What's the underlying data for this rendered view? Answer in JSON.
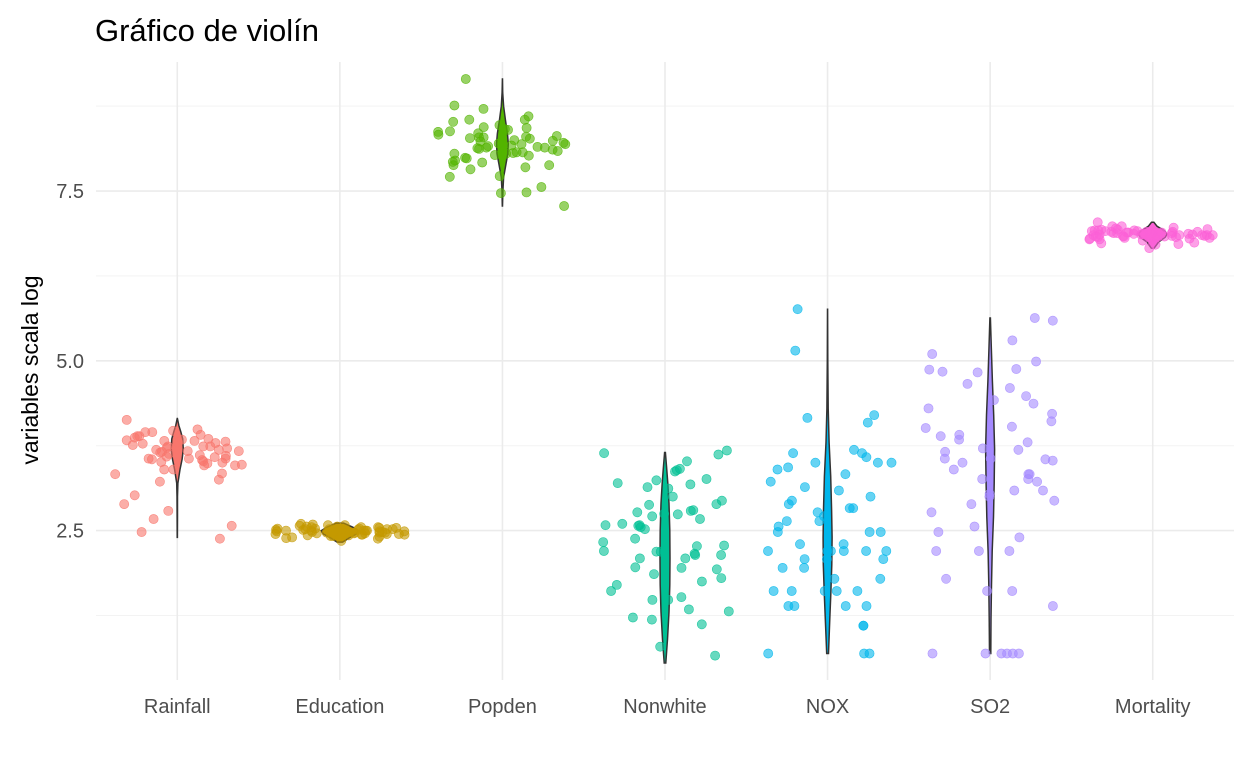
{
  "chart_data": {
    "type": "violin",
    "title": "Gráfico de violín",
    "xlabel": "",
    "ylabel": "variables scala log",
    "ylim": [
      0.3,
      9.4
    ],
    "yticks": [
      2.5,
      5.0,
      7.5
    ],
    "ytick_labels": [
      "2.5",
      "5.0",
      "7.5"
    ],
    "grid": true,
    "legend": "none",
    "categories": [
      "Rainfall",
      "Education",
      "Popden",
      "Nonwhite",
      "NOX",
      "SO2",
      "Mortality"
    ],
    "colors": [
      "#F8766D",
      "#C49A00",
      "#53B400",
      "#00C094",
      "#00B6EB",
      "#A58AFF",
      "#FB61D7"
    ],
    "series": [
      {
        "name": "Rainfall",
        "violin": {
          "min": 2.4,
          "max": 4.15,
          "profile": [
            [
              2.4,
              0.02
            ],
            [
              2.7,
              0.03
            ],
            [
              3.0,
              0.04
            ],
            [
              3.2,
              0.1
            ],
            [
              3.4,
              0.45
            ],
            [
              3.55,
              0.8
            ],
            [
              3.7,
              1.0
            ],
            [
              3.85,
              0.9
            ],
            [
              3.95,
              0.6
            ],
            [
              4.05,
              0.25
            ],
            [
              4.15,
              0.02
            ]
          ]
        },
        "points": [
          3.99,
          3.55,
          3.82,
          3.47,
          3.91,
          3.61,
          3.02,
          3.71,
          3.46,
          2.38,
          3.85,
          3.69,
          3.79,
          3.89,
          3.67,
          3.78,
          3.89,
          3.58,
          3.56,
          3.34,
          4.13,
          3.4,
          3.49,
          3.22,
          3.56,
          3.65,
          2.57,
          3.81,
          3.72,
          3.74,
          3.25,
          3.87,
          3.76,
          2.67,
          3.51,
          3.8,
          3.67,
          3.97,
          3.74,
          2.48,
          3.63,
          3.6,
          3.69,
          3.95,
          3.84,
          3.5,
          3.74,
          3.83,
          3.56,
          2.89,
          3.54,
          3.4,
          3.52,
          3.95,
          3.66,
          3.82,
          3.59,
          3.46,
          2.79,
          3.33
        ]
      },
      {
        "name": "Education",
        "violin": {
          "min": 2.33,
          "max": 2.61,
          "profile": [
            [
              2.33,
              0.15
            ],
            [
              2.4,
              0.55
            ],
            [
              2.45,
              0.9
            ],
            [
              2.5,
              1.0
            ],
            [
              2.55,
              0.7
            ],
            [
              2.61,
              0.2
            ]
          ]
        },
        "points": [
          2.43,
          2.4,
          2.44,
          2.45,
          2.48,
          2.5,
          2.52,
          2.51,
          2.54,
          2.56,
          2.58,
          2.47,
          2.47,
          2.5,
          2.53,
          2.48,
          2.42,
          2.35,
          2.55,
          2.59,
          2.5,
          2.45,
          2.6,
          2.44,
          2.52,
          2.46,
          2.49,
          2.51,
          2.53,
          2.47,
          2.41,
          2.5,
          2.55,
          2.38,
          2.49,
          2.51,
          2.57,
          2.43,
          2.44,
          2.52,
          2.48,
          2.46,
          2.5,
          2.54,
          2.39,
          2.56,
          2.5,
          2.47,
          2.53,
          2.45,
          2.52,
          2.49,
          2.58,
          2.42,
          2.51,
          2.46,
          2.5,
          2.48,
          2.55,
          2.44
        ]
      },
      {
        "name": "Popden",
        "violin": {
          "min": 7.28,
          "max": 9.15,
          "profile": [
            [
              7.28,
              0.02
            ],
            [
              7.5,
              0.08
            ],
            [
              7.7,
              0.2
            ],
            [
              7.9,
              0.6
            ],
            [
              8.05,
              0.92
            ],
            [
              8.2,
              1.0
            ],
            [
              8.35,
              0.85
            ],
            [
              8.55,
              0.5
            ],
            [
              8.75,
              0.2
            ],
            [
              8.95,
              0.05
            ],
            [
              9.15,
              0.01
            ]
          ]
        },
        "points": [
          8.25,
          7.88,
          8.13,
          8.37,
          7.82,
          8.05,
          8.19,
          8.43,
          8.55,
          7.47,
          8.07,
          8.31,
          8.3,
          8.76,
          8.17,
          7.99,
          7.85,
          8.03,
          8.12,
          7.48,
          8.29,
          8.14,
          8.55,
          8.23,
          7.93,
          8.4,
          8.21,
          8.6,
          8.41,
          8.14,
          7.56,
          8.29,
          8.47,
          7.72,
          7.95,
          8.24,
          7.92,
          8.33,
          8.07,
          8.16,
          8.38,
          8.05,
          8.52,
          7.88,
          8.15,
          8.27,
          8.02,
          8.71,
          9.15,
          8.2,
          8.09,
          8.35,
          7.71,
          8.11,
          8.44,
          8.19,
          7.98,
          8.28,
          8.06,
          7.28
        ]
      },
      {
        "name": "Nonwhite",
        "violin": {
          "min": 0.55,
          "max": 3.65,
          "profile": [
            [
              0.55,
              0.15
            ],
            [
              0.9,
              0.5
            ],
            [
              1.3,
              0.8
            ],
            [
              1.7,
              0.95
            ],
            [
              2.1,
              1.0
            ],
            [
              2.5,
              0.95
            ],
            [
              2.9,
              0.8
            ],
            [
              3.2,
              0.55
            ],
            [
              3.45,
              0.3
            ],
            [
              3.65,
              0.08
            ]
          ]
        },
        "points": [
          1.22,
          2.14,
          2.58,
          3.26,
          2.77,
          1.48,
          2.16,
          3.12,
          3.18,
          1.34,
          1.96,
          3.2,
          2.67,
          2.2,
          1.7,
          2.75,
          0.79,
          3.14,
          2.79,
          1.95,
          3.37,
          2.52,
          2.19,
          3.24,
          3.39,
          2.55,
          1.8,
          2.14,
          3.41,
          2.71,
          0.66,
          2.38,
          2.58,
          1.48,
          1.19,
          2.94,
          3.68,
          3.64,
          1.86,
          2.88,
          2.6,
          1.93,
          2.57,
          2.28,
          2.8,
          1.31,
          1.75,
          2.19,
          3.52,
          2.89,
          2.09,
          1.12,
          2.74,
          1.52,
          3.0,
          1.61,
          3.62,
          2.27,
          2.33,
          2.09
        ]
      },
      {
        "name": "NOX",
        "violin": {
          "min": 0.69,
          "max": 5.76,
          "profile": [
            [
              0.69,
              0.2
            ],
            [
              1.2,
              0.5
            ],
            [
              1.6,
              0.75
            ],
            [
              2.0,
              0.95
            ],
            [
              2.4,
              1.0
            ],
            [
              2.8,
              0.9
            ],
            [
              3.3,
              0.7
            ],
            [
              3.8,
              0.35
            ],
            [
              4.3,
              0.15
            ],
            [
              5.0,
              0.05
            ],
            [
              5.76,
              0.01
            ]
          ]
        },
        "points": [
          2.3,
          0.69,
          1.61,
          2.2,
          2.2,
          3.5,
          2.89,
          2.56,
          1.61,
          2.48,
          3.58,
          5.76,
          2.08,
          4.2,
          1.1,
          2.83,
          3.69,
          1.39,
          3.0,
          2.48,
          3.64,
          2.94,
          1.95,
          1.61,
          1.39,
          4.16,
          1.61,
          2.08,
          3.22,
          3.14,
          2.2,
          1.79,
          2.64,
          2.2,
          5.15,
          0.69,
          2.2,
          3.33,
          1.61,
          3.4,
          4.09,
          2.64,
          1.39,
          2.3,
          1.95,
          2.48,
          3.09,
          1.79,
          1.1,
          2.77,
          0.69,
          3.5,
          2.2,
          1.39,
          3.64,
          3.43,
          2.83,
          2.08,
          3.5,
          2.71
        ]
      },
      {
        "name": "SO2",
        "violin": {
          "min": 0.69,
          "max": 5.63,
          "profile": [
            [
              0.69,
              0.15
            ],
            [
              1.2,
              0.2
            ],
            [
              1.7,
              0.3
            ],
            [
              2.2,
              0.45
            ],
            [
              2.7,
              0.75
            ],
            [
              3.2,
              0.9
            ],
            [
              3.7,
              1.0
            ],
            [
              4.2,
              0.8
            ],
            [
              4.7,
              0.5
            ],
            [
              5.2,
              0.25
            ],
            [
              5.63,
              0.05
            ]
          ]
        },
        "points": [
          4.11,
          0.69,
          1.61,
          3.09,
          4.42,
          3.56,
          4.88,
          3.69,
          3.5,
          3.84,
          2.77,
          1.79,
          4.99,
          3.0,
          4.66,
          4.01,
          2.48,
          3.53,
          3.33,
          0.69,
          4.22,
          3.26,
          0.69,
          4.37,
          1.39,
          2.2,
          1.61,
          4.84,
          3.33,
          2.89,
          4.03,
          3.04,
          3.09,
          0.69,
          4.87,
          5.3,
          3.89,
          3.66,
          2.94,
          4.83,
          3.71,
          5.1,
          3.55,
          3.26,
          0.69,
          5.59,
          3.8,
          4.48,
          2.56,
          3.4,
          2.4,
          0.69,
          4.3,
          5.63,
          2.2,
          3.22,
          4.6,
          3.91,
          3.56,
          2.2
        ]
      },
      {
        "name": "Mortality",
        "violin": {
          "min": 6.66,
          "max": 7.04,
          "profile": [
            [
              6.66,
              0.1
            ],
            [
              6.75,
              0.4
            ],
            [
              6.82,
              0.85
            ],
            [
              6.87,
              1.0
            ],
            [
              6.92,
              0.75
            ],
            [
              6.98,
              0.3
            ],
            [
              7.04,
              0.08
            ]
          ]
        },
        "points": [
          6.83,
          6.89,
          6.96,
          6.82,
          6.83,
          6.98,
          6.86,
          6.9,
          6.93,
          6.81,
          6.9,
          6.73,
          6.88,
          6.85,
          6.92,
          6.85,
          6.82,
          6.86,
          6.79,
          6.91,
          6.88,
          6.72,
          6.74,
          6.9,
          6.95,
          6.82,
          6.93,
          6.87,
          6.8,
          6.84,
          6.89,
          6.91,
          6.77,
          6.87,
          7.04,
          6.85,
          6.84,
          6.92,
          6.71,
          6.81,
          6.86,
          6.98,
          6.83,
          6.88,
          6.94,
          6.8,
          6.87,
          6.85,
          6.89,
          6.79,
          6.92,
          6.84,
          6.86,
          6.9,
          6.66,
          6.88,
          6.82,
          6.91,
          6.87,
          6.85
        ]
      }
    ]
  }
}
